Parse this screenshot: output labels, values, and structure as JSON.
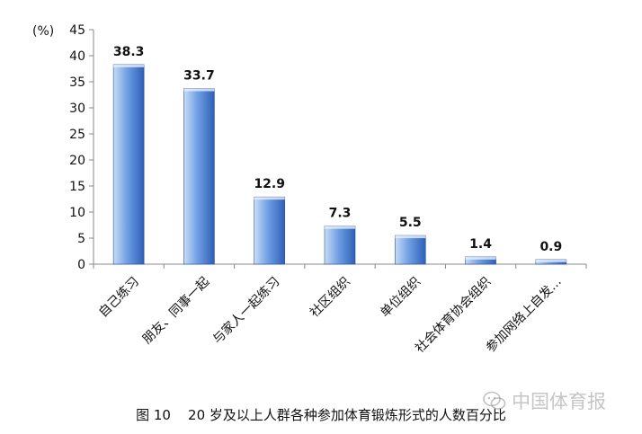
{
  "chart_data": {
    "type": "bar",
    "unit_label": "(%)",
    "categories": [
      "自己练习",
      "朋友、同事一起",
      "与家人一起练习",
      "社区组织",
      "单位组织",
      "社会体育协会组织",
      "参加网络上自发..."
    ],
    "values": [
      38.3,
      33.7,
      12.9,
      7.3,
      5.5,
      1.4,
      0.9
    ],
    "value_labels": [
      "38.3",
      "33.7",
      "12.9",
      "7.3",
      "5.5",
      "1.4",
      "0.9"
    ],
    "ylim": [
      0,
      45
    ],
    "yticks": [
      0,
      5,
      10,
      15,
      20,
      25,
      30,
      35,
      40,
      45
    ],
    "grid": false,
    "legend": "none",
    "bar_color_light": "#c9dcf5",
    "bar_color_mid": "#6f9fe3",
    "bar_color_dark": "#2f5fb8"
  },
  "caption": "图 10    20 岁及以上人群各种参加体育锻炼形式的人数百分比",
  "watermark": {
    "icon": "wechat-icon",
    "text": "中国体育报"
  }
}
